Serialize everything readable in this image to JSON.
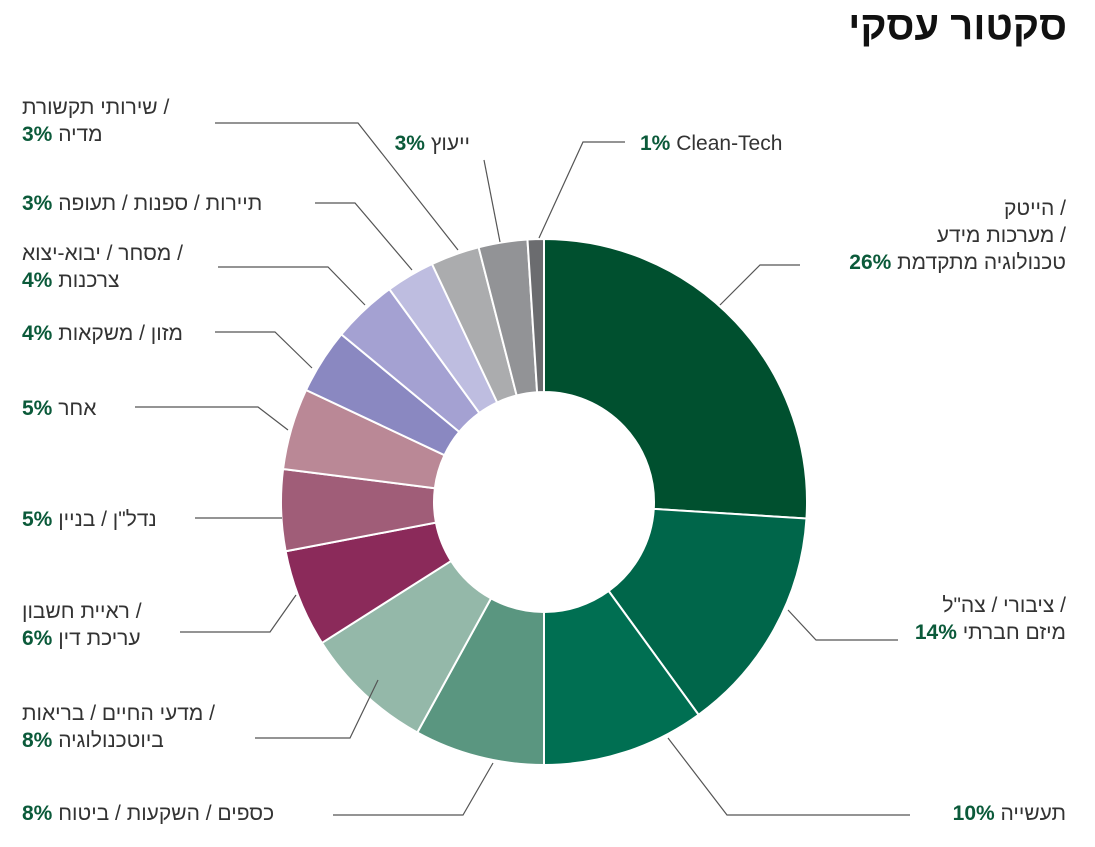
{
  "title": "סקטור עסקי",
  "chart_data": {
    "type": "pie",
    "donut": true,
    "title": "סקטור עסקי",
    "slices": [
      {
        "label_lines": [
          "הייטק /",
          "מערכות מידע /",
          "טכנולוגיה מתקדמת"
        ],
        "value": 26,
        "pct_text": "26%",
        "color": "#00502f"
      },
      {
        "label_lines": [
          "ציבורי / צה\"ל /",
          "מיזם חברתי"
        ],
        "value": 14,
        "pct_text": "14%",
        "color": "#00664a"
      },
      {
        "label_lines": [
          "תעשייה"
        ],
        "value": 10,
        "pct_text": "10%",
        "color": "#006f52"
      },
      {
        "label_lines": [
          "כספים / השקעות / ביטוח"
        ],
        "value": 8,
        "pct_text": "8%",
        "color": "#5a9680"
      },
      {
        "label_lines": [
          "מדעי החיים / בריאות /",
          "ביוטכנולוגיה"
        ],
        "value": 8,
        "pct_text": "8%",
        "color": "#94b8a9"
      },
      {
        "label_lines": [
          "ראיית חשבון /",
          "עריכת דין"
        ],
        "value": 6,
        "pct_text": "6%",
        "color": "#8b2a5a"
      },
      {
        "label_lines": [
          "נדל\"ן / בניין"
        ],
        "value": 5,
        "pct_text": "5%",
        "color": "#a05d78"
      },
      {
        "label_lines": [
          "אחר"
        ],
        "value": 5,
        "pct_text": "5%",
        "color": "#ba8896"
      },
      {
        "label_lines": [
          "מזון / משקאות"
        ],
        "value": 4,
        "pct_text": "4%",
        "color": "#8a88c1"
      },
      {
        "label_lines": [
          "מסחר / יבוא-יצוא /",
          "צרכנות"
        ],
        "value": 4,
        "pct_text": "4%",
        "color": "#a4a1d2"
      },
      {
        "label_lines": [
          "תיירות / ספנות / תעופה"
        ],
        "value": 3,
        "pct_text": "3%",
        "color": "#bebde0"
      },
      {
        "label_lines": [
          "שירותי תקשורת /",
          "מדיה"
        ],
        "value": 3,
        "pct_text": "3%",
        "color": "#abacae"
      },
      {
        "label_lines": [
          "ייעוץ"
        ],
        "value": 3,
        "pct_text": "3%",
        "color": "#929396"
      },
      {
        "label_lines": [
          "Clean-Tech"
        ],
        "value": 1,
        "pct_text": "1%",
        "color": "#6b6c6f"
      }
    ]
  }
}
